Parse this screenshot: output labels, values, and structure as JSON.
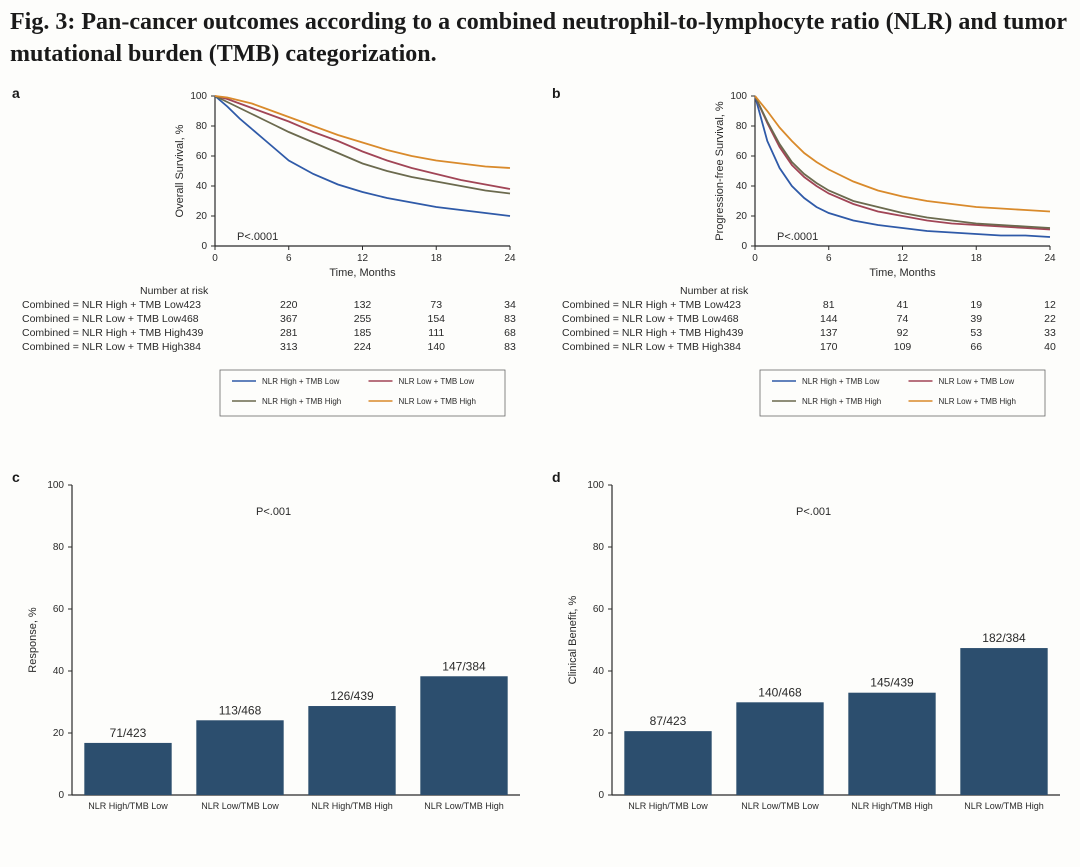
{
  "title": "Fig. 3: Pan-cancer outcomes according to a combined neutrophil-to-lymphocyte ratio (NLR) and tumor mutational burden (TMB) categorization.",
  "colors": {
    "s1": "#2f5aa8",
    "s2": "#a14556",
    "s3": "#6b6a4e",
    "s4": "#d98a2b",
    "bar": "#2c4e6e",
    "axis": "#2a2a2a",
    "bg": "#fdfdfb"
  },
  "series_labels": {
    "s1": "NLR High + TMB Low",
    "s2": "NLR Low + TMB Low",
    "s3": "NLR High + TMB High",
    "s4": "NLR Low + TMB High"
  },
  "panel_a": {
    "label": "a",
    "ylabel": "Overall Survival, %",
    "xlabel": "Time, Months",
    "yticks": [
      0,
      20,
      40,
      60,
      80,
      100
    ],
    "xticks": [
      0,
      6,
      12,
      18,
      24
    ],
    "xlim": [
      0,
      24
    ],
    "ylim": [
      0,
      100
    ],
    "pvalue": "P<.0001",
    "curves": {
      "s1": [
        [
          0,
          100
        ],
        [
          1,
          93
        ],
        [
          2,
          85
        ],
        [
          3,
          78
        ],
        [
          4,
          71
        ],
        [
          5,
          64
        ],
        [
          6,
          57
        ],
        [
          8,
          48
        ],
        [
          10,
          41
        ],
        [
          12,
          36
        ],
        [
          14,
          32
        ],
        [
          16,
          29
        ],
        [
          18,
          26
        ],
        [
          20,
          24
        ],
        [
          22,
          22
        ],
        [
          24,
          20
        ]
      ],
      "s2": [
        [
          0,
          100
        ],
        [
          1,
          98
        ],
        [
          2,
          95
        ],
        [
          3,
          92
        ],
        [
          4,
          89
        ],
        [
          5,
          86
        ],
        [
          6,
          83
        ],
        [
          8,
          76
        ],
        [
          10,
          70
        ],
        [
          12,
          63
        ],
        [
          14,
          57
        ],
        [
          16,
          52
        ],
        [
          18,
          48
        ],
        [
          20,
          44
        ],
        [
          22,
          41
        ],
        [
          24,
          38
        ]
      ],
      "s3": [
        [
          0,
          100
        ],
        [
          1,
          96
        ],
        [
          2,
          92
        ],
        [
          3,
          88
        ],
        [
          4,
          84
        ],
        [
          5,
          80
        ],
        [
          6,
          76
        ],
        [
          8,
          69
        ],
        [
          10,
          62
        ],
        [
          12,
          55
        ],
        [
          14,
          50
        ],
        [
          16,
          46
        ],
        [
          18,
          43
        ],
        [
          20,
          40
        ],
        [
          22,
          37
        ],
        [
          24,
          35
        ]
      ],
      "s4": [
        [
          0,
          100
        ],
        [
          1,
          99
        ],
        [
          2,
          97
        ],
        [
          3,
          95
        ],
        [
          4,
          92
        ],
        [
          5,
          89
        ],
        [
          6,
          86
        ],
        [
          8,
          80
        ],
        [
          10,
          74
        ],
        [
          12,
          69
        ],
        [
          14,
          64
        ],
        [
          16,
          60
        ],
        [
          18,
          57
        ],
        [
          20,
          55
        ],
        [
          22,
          53
        ],
        [
          24,
          52
        ]
      ]
    },
    "risk_title": "Number at risk",
    "risk_rows": [
      {
        "label": "Combined = NLR High + TMB Low423",
        "vals": [
          220,
          132,
          73,
          34
        ]
      },
      {
        "label": "Combined = NLR Low + TMB Low468",
        "vals": [
          367,
          255,
          154,
          83
        ]
      },
      {
        "label": "Combined = NLR High + TMB High439",
        "vals": [
          281,
          185,
          111,
          68
        ]
      },
      {
        "label": "Combined = NLR Low + TMB High384",
        "vals": [
          313,
          224,
          140,
          83
        ]
      }
    ]
  },
  "panel_b": {
    "label": "b",
    "ylabel": "Progression-free Survival, %",
    "xlabel": "Time, Months",
    "yticks": [
      0,
      20,
      40,
      60,
      80,
      100
    ],
    "xticks": [
      0,
      6,
      12,
      18,
      24
    ],
    "xlim": [
      0,
      24
    ],
    "ylim": [
      0,
      100
    ],
    "pvalue": "P<.0001",
    "curves": {
      "s1": [
        [
          0,
          100
        ],
        [
          1,
          70
        ],
        [
          2,
          52
        ],
        [
          3,
          40
        ],
        [
          4,
          32
        ],
        [
          5,
          26
        ],
        [
          6,
          22
        ],
        [
          8,
          17
        ],
        [
          10,
          14
        ],
        [
          12,
          12
        ],
        [
          14,
          10
        ],
        [
          16,
          9
        ],
        [
          18,
          8
        ],
        [
          20,
          7
        ],
        [
          22,
          7
        ],
        [
          24,
          6
        ]
      ],
      "s2": [
        [
          0,
          100
        ],
        [
          1,
          82
        ],
        [
          2,
          66
        ],
        [
          3,
          54
        ],
        [
          4,
          46
        ],
        [
          5,
          40
        ],
        [
          6,
          35
        ],
        [
          8,
          28
        ],
        [
          10,
          23
        ],
        [
          12,
          20
        ],
        [
          14,
          17
        ],
        [
          16,
          15
        ],
        [
          18,
          14
        ],
        [
          20,
          13
        ],
        [
          22,
          12
        ],
        [
          24,
          11
        ]
      ],
      "s3": [
        [
          0,
          100
        ],
        [
          1,
          83
        ],
        [
          2,
          68
        ],
        [
          3,
          56
        ],
        [
          4,
          48
        ],
        [
          5,
          42
        ],
        [
          6,
          37
        ],
        [
          8,
          30
        ],
        [
          10,
          26
        ],
        [
          12,
          22
        ],
        [
          14,
          19
        ],
        [
          16,
          17
        ],
        [
          18,
          15
        ],
        [
          20,
          14
        ],
        [
          22,
          13
        ],
        [
          24,
          12
        ]
      ],
      "s4": [
        [
          0,
          100
        ],
        [
          1,
          90
        ],
        [
          2,
          79
        ],
        [
          3,
          70
        ],
        [
          4,
          62
        ],
        [
          5,
          56
        ],
        [
          6,
          51
        ],
        [
          8,
          43
        ],
        [
          10,
          37
        ],
        [
          12,
          33
        ],
        [
          14,
          30
        ],
        [
          16,
          28
        ],
        [
          18,
          26
        ],
        [
          20,
          25
        ],
        [
          22,
          24
        ],
        [
          24,
          23
        ]
      ]
    },
    "risk_title": "Number at risk",
    "risk_rows": [
      {
        "label": "Combined = NLR High + TMB Low423",
        "vals": [
          81,
          41,
          19,
          12
        ]
      },
      {
        "label": "Combined = NLR Low + TMB Low468",
        "vals": [
          144,
          74,
          39,
          22
        ]
      },
      {
        "label": "Combined = NLR High + TMB High439",
        "vals": [
          137,
          92,
          53,
          33
        ]
      },
      {
        "label": "Combined = NLR Low + TMB High384",
        "vals": [
          170,
          109,
          66,
          40
        ]
      }
    ]
  },
  "panel_c": {
    "label": "c",
    "ylabel": "Response, %",
    "yticks": [
      0,
      20,
      40,
      60,
      80,
      100
    ],
    "ylim": [
      0,
      100
    ],
    "pvalue": "P<.001",
    "bars": [
      {
        "cat": "NLR High/TMB Low",
        "label": "71/423",
        "value": 16.8
      },
      {
        "cat": "NLR Low/TMB Low",
        "label": "113/468",
        "value": 24.1
      },
      {
        "cat": "NLR High/TMB High",
        "label": "126/439",
        "value": 28.7
      },
      {
        "cat": "NLR Low/TMB High",
        "label": "147/384",
        "value": 38.3
      }
    ]
  },
  "panel_d": {
    "label": "d",
    "ylabel": "Clinical Benefit, %",
    "yticks": [
      0,
      20,
      40,
      60,
      80,
      100
    ],
    "ylim": [
      0,
      100
    ],
    "pvalue": "P<.001",
    "bars": [
      {
        "cat": "NLR High/TMB Low",
        "label": "87/423",
        "value": 20.6
      },
      {
        "cat": "NLR Low/TMB Low",
        "label": "140/468",
        "value": 29.9
      },
      {
        "cat": "NLR High/TMB High",
        "label": "145/439",
        "value": 33.0
      },
      {
        "cat": "NLR Low/TMB High",
        "label": "182/384",
        "value": 47.4
      }
    ]
  }
}
